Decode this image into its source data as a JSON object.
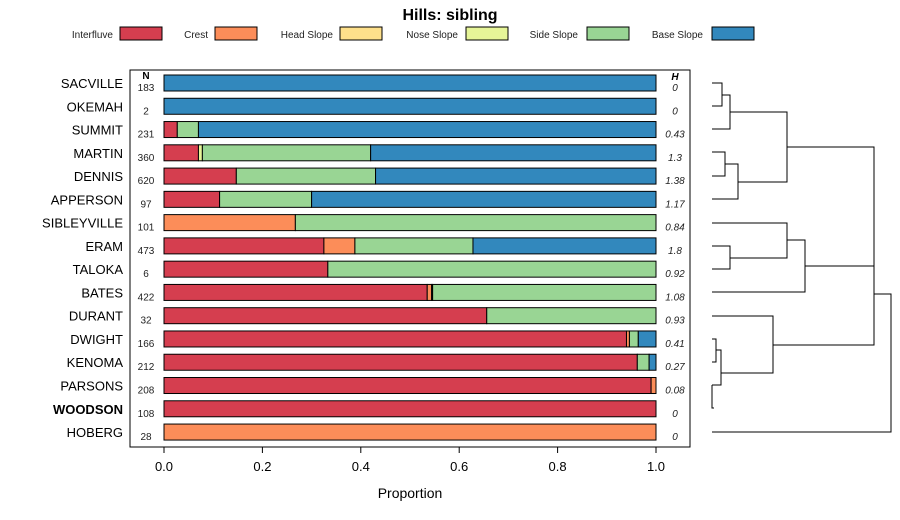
{
  "chart_data": {
    "type": "bar",
    "stacked": true,
    "orientation": "horizontal",
    "title": "Hills: sibling",
    "xlabel": "Proportion",
    "ylabel": "",
    "xlim": [
      0,
      1
    ],
    "x_ticks": [
      "0.0",
      "0.2",
      "0.4",
      "0.6",
      "0.8",
      "1.0"
    ],
    "x_tick_values": [
      0,
      0.2,
      0.4,
      0.6,
      0.8,
      1.0
    ],
    "n_header": "N",
    "h_header": "H",
    "highlight": "WOODSON",
    "legend": [
      {
        "name": "Interfluve",
        "color": "#D53E4F"
      },
      {
        "name": "Crest",
        "color": "#FC8D59"
      },
      {
        "name": "Head Slope",
        "color": "#FEE08B"
      },
      {
        "name": "Nose Slope",
        "color": "#E6F598"
      },
      {
        "name": "Side Slope",
        "color": "#99D594"
      },
      {
        "name": "Base Slope",
        "color": "#3288BD"
      }
    ],
    "rows": [
      {
        "name": "SACVILLE",
        "n": "183",
        "h": "0",
        "values": [
          0,
          0,
          0,
          0,
          0,
          1.0
        ]
      },
      {
        "name": "OKEMAH",
        "n": "2",
        "h": "0",
        "values": [
          0,
          0,
          0,
          0,
          0,
          1.0
        ]
      },
      {
        "name": "SUMMIT",
        "n": "231",
        "h": "0.43",
        "values": [
          0.027,
          0,
          0,
          0,
          0.043,
          0.93
        ]
      },
      {
        "name": "MARTIN",
        "n": "360",
        "h": "1.3",
        "values": [
          0.07,
          0,
          0,
          0.008,
          0.342,
          0.58
        ]
      },
      {
        "name": "DENNIS",
        "n": "620",
        "h": "1.38",
        "values": [
          0.147,
          0,
          0,
          0,
          0.283,
          0.57
        ]
      },
      {
        "name": "APPERSON",
        "n": "97",
        "h": "1.17",
        "values": [
          0.113,
          0,
          0,
          0,
          0.187,
          0.7
        ]
      },
      {
        "name": "SIBLEYVILLE",
        "n": "101",
        "h": "0.84",
        "values": [
          0,
          0.267,
          0,
          0,
          0.733,
          0
        ]
      },
      {
        "name": "ERAM",
        "n": "473",
        "h": "1.8",
        "values": [
          0.325,
          0.063,
          0,
          0,
          0.24,
          0.372
        ]
      },
      {
        "name": "TALOKA",
        "n": "6",
        "h": "0.92",
        "values": [
          0.333,
          0,
          0,
          0,
          0.667,
          0
        ]
      },
      {
        "name": "BATES",
        "n": "422",
        "h": "1.08",
        "values": [
          0.535,
          0.009,
          0.002,
          0,
          0.454,
          0
        ]
      },
      {
        "name": "DURANT",
        "n": "32",
        "h": "0.93",
        "values": [
          0.656,
          0,
          0,
          0,
          0.344,
          0
        ]
      },
      {
        "name": "DWIGHT",
        "n": "166",
        "h": "0.41",
        "values": [
          0.94,
          0.006,
          0,
          0,
          0.018,
          0.036
        ]
      },
      {
        "name": "KENOMA",
        "n": "212",
        "h": "0.27",
        "values": [
          0.962,
          0,
          0,
          0,
          0.024,
          0.014
        ]
      },
      {
        "name": "PARSONS",
        "n": "208",
        "h": "0.08",
        "values": [
          0.99,
          0.01,
          0,
          0,
          0,
          0
        ]
      },
      {
        "name": "WOODSON",
        "n": "108",
        "h": "0",
        "values": [
          1.0,
          0,
          0,
          0,
          0,
          0
        ]
      },
      {
        "name": "HOBERG",
        "n": "28",
        "h": "0",
        "values": [
          0,
          1.0,
          0,
          0,
          0,
          0
        ]
      }
    ]
  }
}
